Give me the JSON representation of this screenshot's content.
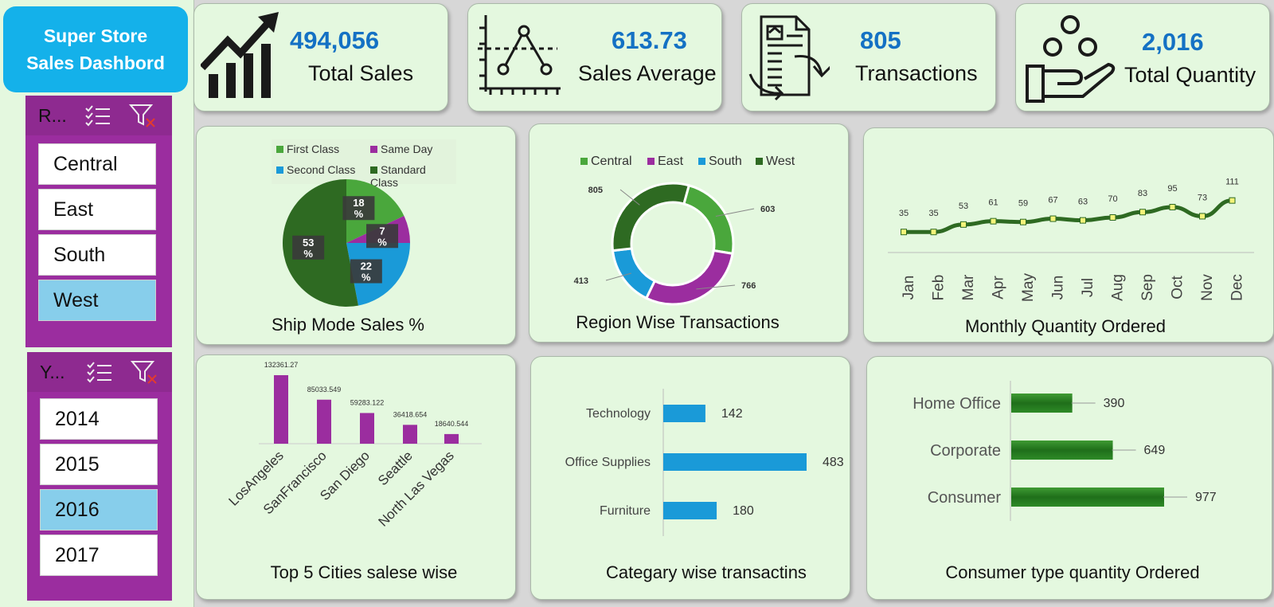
{
  "sidebar": {
    "title_line1": "Super Store",
    "title_line2": "Sales Dashbord",
    "region_slicer": {
      "header": "R...",
      "items": [
        "Central",
        "East",
        "South",
        "West"
      ],
      "selected": "West"
    },
    "year_slicer": {
      "header": "Y...",
      "items": [
        "2014",
        "2015",
        "2016",
        "2017"
      ],
      "selected": "2016"
    }
  },
  "kpis": [
    {
      "value": "494,056",
      "label": "Total Sales",
      "icon": "growth-chart-icon"
    },
    {
      "value": "613.73",
      "label": "Sales Average",
      "icon": "line-graph-icon"
    },
    {
      "value": "805",
      "label": "Transactions",
      "icon": "document-exchange-icon"
    },
    {
      "value": "2,016",
      "label": "Total Quantity",
      "icon": "hand-coins-icon"
    }
  ],
  "colors": {
    "green": "#4aa73c",
    "purple": "#9b2d9f",
    "blue": "#1a9ad8",
    "darkgreen": "#2e6a22",
    "kpi_blue": "#1471c4",
    "title_blue": "#14b1ea"
  },
  "chart_data": [
    {
      "type": "pie",
      "title": "Ship Mode Sales %",
      "categories": [
        "First Class",
        "Same Day",
        "Second Class",
        "Standard Class"
      ],
      "values": [
        18,
        7,
        22,
        53
      ],
      "labels": [
        "18 %",
        "7 %",
        "22 %",
        "53 %"
      ]
    },
    {
      "type": "pie",
      "subtype": "donut",
      "title": "Region Wise Transactions",
      "categories": [
        "Central",
        "East",
        "South",
        "West"
      ],
      "values": [
        603,
        766,
        413,
        805
      ]
    },
    {
      "type": "line",
      "title": "Monthly Quantity Ordered",
      "categories": [
        "Jan",
        "Feb",
        "Mar",
        "Apr",
        "May",
        "Jun",
        "Jul",
        "Aug",
        "Sep",
        "Oct",
        "Nov",
        "Dec"
      ],
      "values": [
        35,
        35,
        53,
        61,
        59,
        67,
        63,
        70,
        83,
        95,
        73,
        111
      ]
    },
    {
      "type": "bar",
      "title": "Top 5 Cities salese wise",
      "categories": [
        "LosAngeles",
        "SanFrancisco",
        "San Diego",
        "Seattle",
        "North Las Vegas"
      ],
      "values": [
        132361.27,
        85033.549,
        59283.122,
        36418.654,
        18640.544
      ],
      "value_labels": [
        "132361.27",
        "85033.549",
        "59283.122",
        "36418.654",
        "18640.544"
      ]
    },
    {
      "type": "bar",
      "orientation": "horizontal",
      "title": "Categary wise transactins",
      "categories": [
        "Technology",
        "Office Supplies",
        "Furniture"
      ],
      "values": [
        142,
        483,
        180
      ]
    },
    {
      "type": "bar",
      "orientation": "horizontal",
      "title": "Consumer type quantity Ordered",
      "categories": [
        "Home Office",
        "Corporate",
        "Consumer"
      ],
      "values": [
        390,
        649,
        977
      ]
    }
  ]
}
